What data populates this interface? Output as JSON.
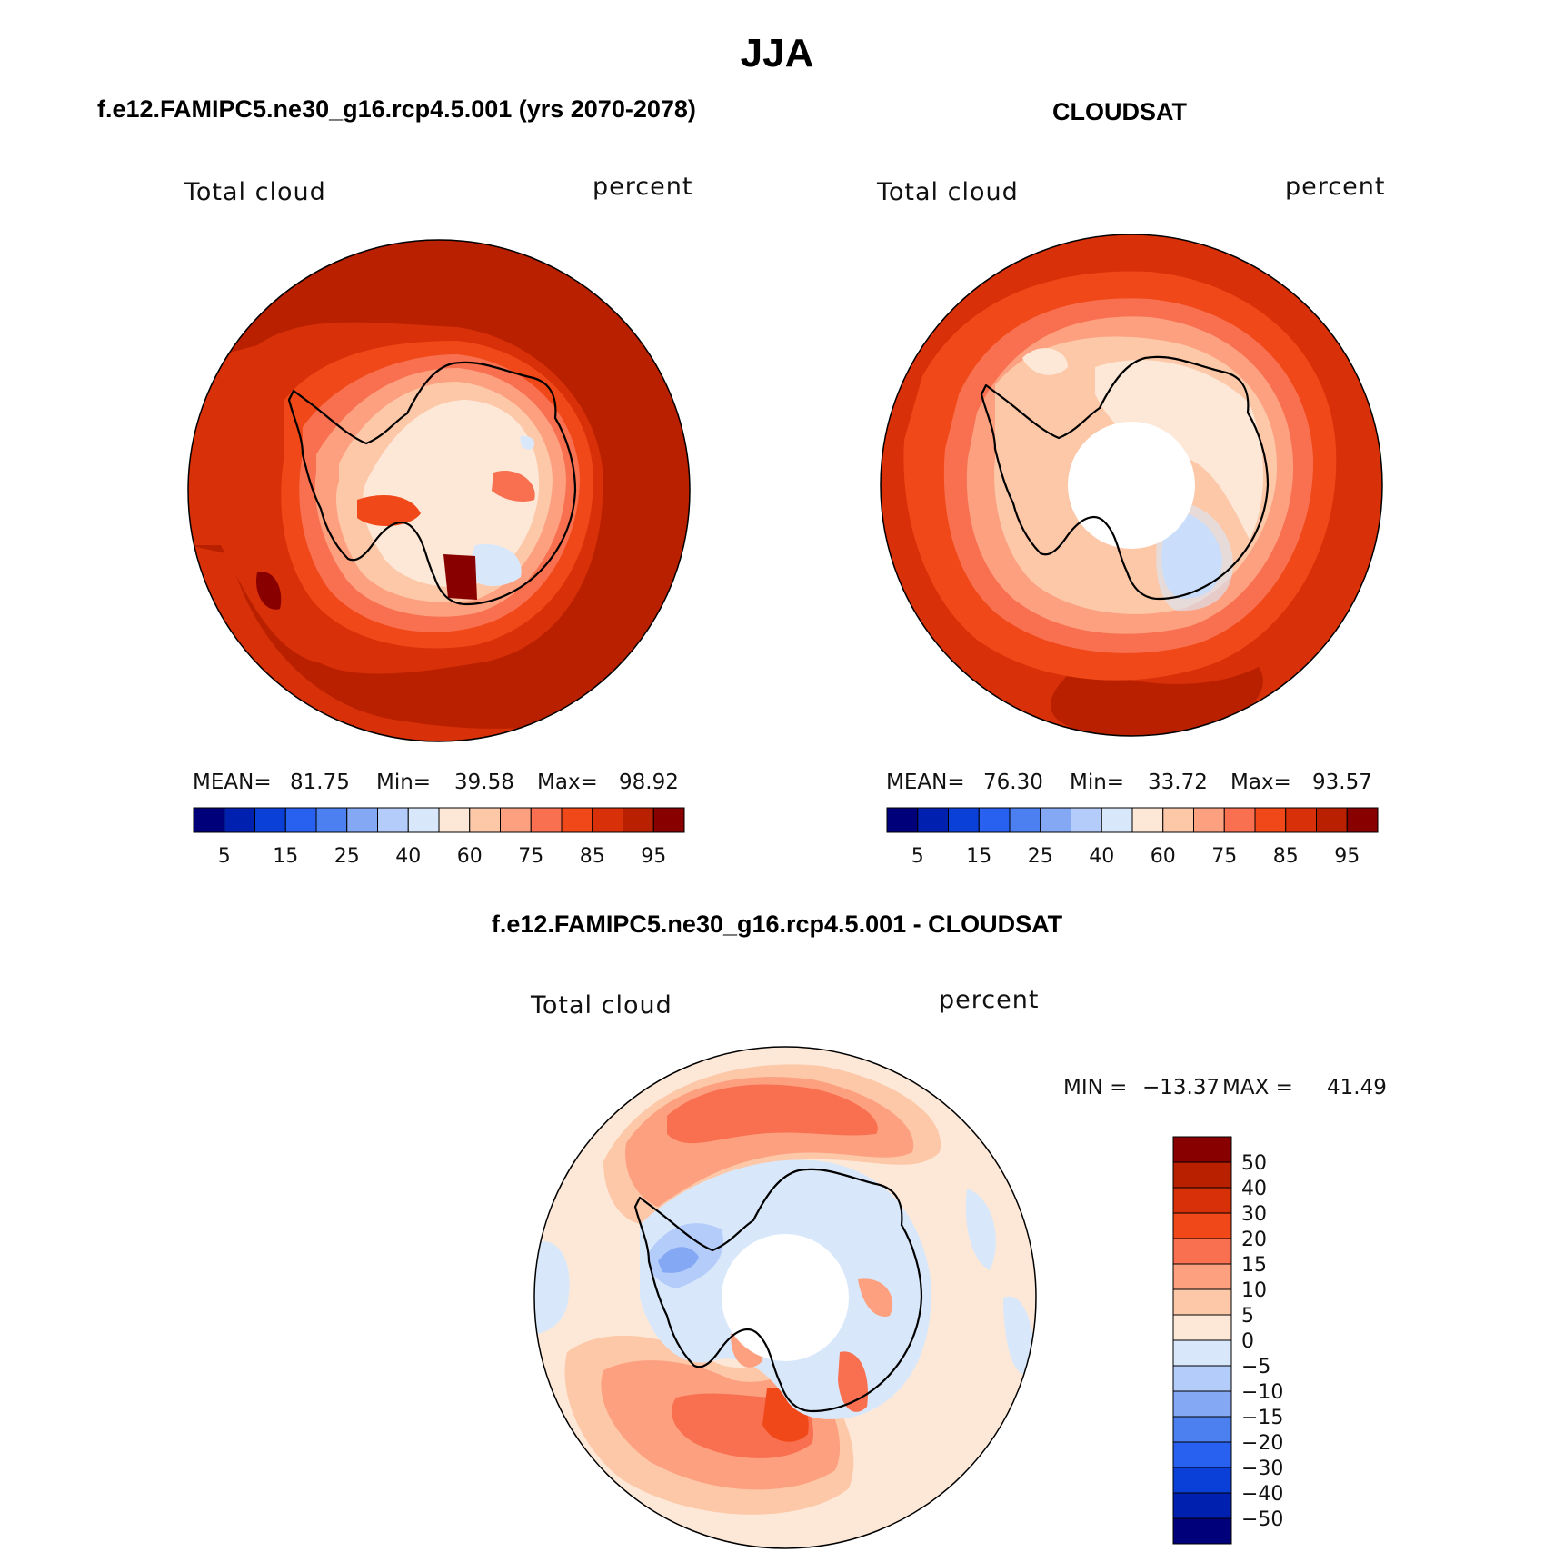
{
  "title": "JJA",
  "colors": {
    "abs_scale": [
      "#00007a",
      "#0020b0",
      "#0a3fd8",
      "#2860f0",
      "#4c80f0",
      "#84a8f4",
      "#b4ccfa",
      "#d8e8fa",
      "#fde8d8",
      "#fcc8a8",
      "#fca080",
      "#f87050",
      "#f04818",
      "#d83008",
      "#b82000",
      "#880000"
    ],
    "diff_scale": [
      "#00007a",
      "#0020b0",
      "#0a3fd8",
      "#2860f0",
      "#4c80f0",
      "#84a8f4",
      "#b4ccfa",
      "#d8e8fa",
      "#fde8d8",
      "#fcc8a8",
      "#fca080",
      "#f87050",
      "#f04818",
      "#d83008",
      "#b82000",
      "#880000"
    ],
    "coast": "#000000"
  },
  "panels": {
    "model": {
      "title": "f.e12.FAMIPC5.ne30_g16.rcp4.5.001 (yrs 2070-2078)",
      "left_label": "Total cloud",
      "right_label": "percent",
      "mean_label": "MEAN=",
      "mean": "81.75",
      "min_label": "Min=",
      "min": "39.58",
      "max_label": "Max=",
      "max": "98.92"
    },
    "obs": {
      "title": "CLOUDSAT",
      "left_label": "Total cloud",
      "right_label": "percent",
      "mean_label": "MEAN=",
      "mean": "76.30",
      "min_label": "Min=",
      "min": "33.72",
      "max_label": "Max=",
      "max": "93.57"
    },
    "diff": {
      "title": "f.e12.FAMIPC5.ne30_g16.rcp4.5.001 - CLOUDSAT",
      "left_label": "Total cloud",
      "right_label": "percent",
      "min_label": "MIN =",
      "min": "−13.37",
      "max_label": "MAX =",
      "max": "41.49"
    }
  },
  "abs_colorbar_ticks": [
    "5",
    "15",
    "25",
    "40",
    "60",
    "75",
    "85",
    "95"
  ],
  "diff_colorbar_ticks": [
    "50",
    "40",
    "30",
    "20",
    "15",
    "10",
    "5",
    "0",
    "−5",
    "−10",
    "−15",
    "−20",
    "−30",
    "−40",
    "−50"
  ]
}
